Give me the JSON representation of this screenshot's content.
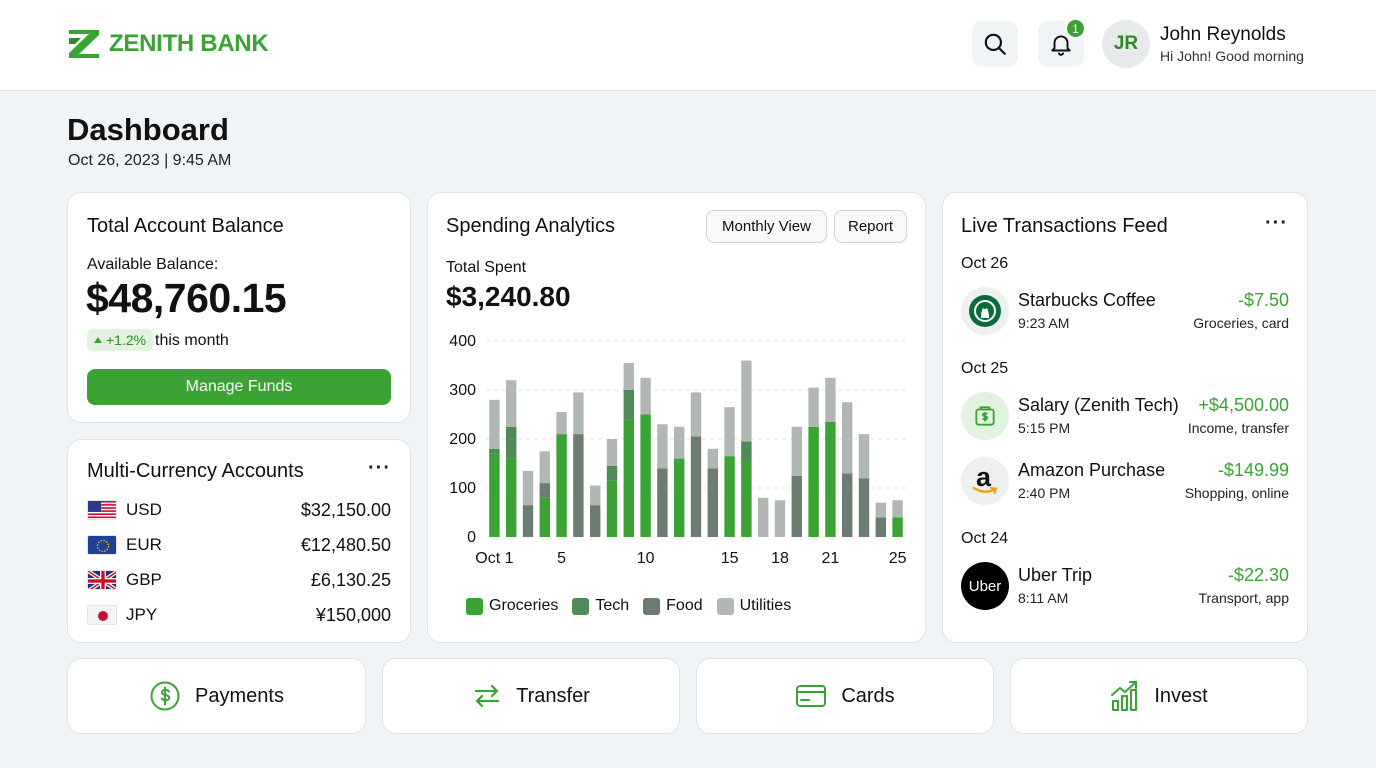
{
  "brand": {
    "name": "ZENITH BANK",
    "color": "#3aa334"
  },
  "header": {
    "notification_count": "1",
    "avatar_initials": "JR",
    "user_name": "John Reynolds",
    "greeting": "Hi John! Good morning"
  },
  "page": {
    "title": "Dashboard",
    "datetime": "Oct 26, 2023 | 9:45 AM"
  },
  "balance": {
    "title": "Total Account Balance",
    "label": "Available Balance:",
    "amount": "$48,760.15",
    "change": "+1.2%",
    "change_suffix": "this month",
    "button": "Manage Funds"
  },
  "currencies": {
    "title": "Multi-Currency Accounts",
    "items": [
      {
        "code": "USD",
        "amount": "$32,150.00",
        "flag": "us-flag"
      },
      {
        "code": "EUR",
        "amount": "€12,480.50",
        "flag": "eu-flag"
      },
      {
        "code": "GBP",
        "amount": "£6,130.25",
        "flag": "uk-flag"
      },
      {
        "code": "JPY",
        "amount": "¥150,000",
        "flag": "jp-flag"
      }
    ]
  },
  "analytics": {
    "title": "Spending Analytics",
    "monthly_view": "Monthly View",
    "report": "Report",
    "total_label": "Total Spent",
    "total_amount": "$3,240.80"
  },
  "chart_data": {
    "type": "bar",
    "stacked": true,
    "x": [
      1,
      2,
      3,
      4,
      5,
      6,
      7,
      8,
      9,
      10,
      11,
      12,
      13,
      14,
      15,
      16,
      17,
      18,
      19,
      20,
      21,
      22,
      23,
      24,
      25
    ],
    "x_tick_labels": [
      {
        "x": 1,
        "label": "Oct 1"
      },
      {
        "x": 5,
        "label": "5"
      },
      {
        "x": 10,
        "label": "10"
      },
      {
        "x": 15,
        "label": "15"
      },
      {
        "x": 18,
        "label": "18"
      },
      {
        "x": 21,
        "label": "21"
      },
      {
        "x": 25,
        "label": "25"
      }
    ],
    "ylim": [
      0,
      400
    ],
    "y_ticks": [
      0,
      100,
      200,
      300,
      400
    ],
    "grid": true,
    "legend_position": "bottom",
    "series": [
      {
        "name": "Groceries",
        "color": "#3aa334",
        "values": [
          170,
          160,
          0,
          80,
          210,
          0,
          0,
          115,
          240,
          250,
          0,
          160,
          0,
          0,
          165,
          155,
          0,
          0,
          0,
          225,
          235,
          0,
          0,
          0,
          40
        ]
      },
      {
        "name": "Tech",
        "color": "#4f8a57",
        "values": [
          10,
          65,
          0,
          0,
          0,
          0,
          0,
          30,
          60,
          0,
          0,
          0,
          0,
          0,
          0,
          40,
          0,
          0,
          0,
          0,
          0,
          0,
          0,
          0,
          0
        ]
      },
      {
        "name": "Food",
        "color": "#6b7d70",
        "values": [
          0,
          0,
          65,
          30,
          0,
          210,
          65,
          0,
          0,
          0,
          140,
          0,
          205,
          140,
          0,
          0,
          0,
          0,
          125,
          0,
          0,
          130,
          120,
          40,
          0
        ]
      },
      {
        "name": "Utilities",
        "color": "#b1b8b4",
        "values": [
          100,
          95,
          70,
          65,
          45,
          85,
          40,
          55,
          55,
          75,
          90,
          65,
          90,
          40,
          100,
          165,
          80,
          75,
          100,
          80,
          90,
          145,
          90,
          30,
          35
        ]
      }
    ]
  },
  "feed": {
    "title": "Live Transactions Feed",
    "groups": [
      {
        "date": "Oct 26",
        "items": [
          {
            "name": "Starbucks Coffee",
            "time": "9:23 AM",
            "amount": "-$7.50",
            "category": "Groceries, card",
            "icon": "starbucks-logo"
          }
        ]
      },
      {
        "date": "Oct 25",
        "items": [
          {
            "name": "Salary (Zenith Tech)",
            "time": "5:15 PM",
            "amount": "+$4,500.00",
            "category": "Income, transfer",
            "icon": "salary-icon"
          },
          {
            "name": "Amazon Purchase",
            "time": "2:40 PM",
            "amount": "-$149.99",
            "category": "Shopping, online",
            "icon": "amazon-logo",
            "logo_text": "a"
          }
        ]
      },
      {
        "date": "Oct 24",
        "items": [
          {
            "name": "Uber Trip",
            "time": "8:11 AM",
            "amount": "-$22.30",
            "category": "Transport, app",
            "icon": "uber-logo",
            "logo_text": "Uber"
          }
        ]
      }
    ]
  },
  "actions": [
    {
      "label": "Payments",
      "icon": "dollar-circle-icon"
    },
    {
      "label": "Transfer",
      "icon": "transfer-arrows-icon"
    },
    {
      "label": "Cards",
      "icon": "credit-card-icon"
    },
    {
      "label": "Invest",
      "icon": "growth-chart-icon"
    }
  ]
}
